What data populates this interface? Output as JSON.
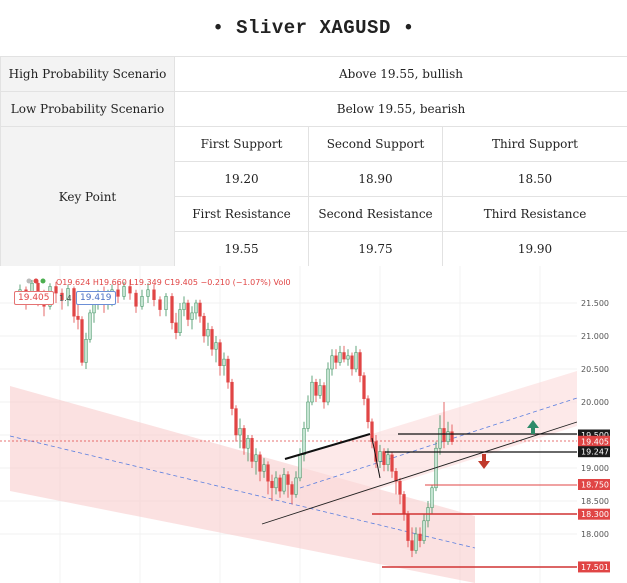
{
  "title": "•  Sliver XAGUSD  •",
  "scenarios": {
    "high_label": "High Probability Scenario",
    "high_value": "Above 19.55, bullish",
    "low_label": "Low Probability Scenario",
    "low_value": "Below 19.55, bearish"
  },
  "key_point": {
    "label": "Key Point",
    "support_headers": [
      "First Support",
      "Second Support",
      "Third Support"
    ],
    "support_values": [
      "19.20",
      "18.90",
      "18.50"
    ],
    "resistance_headers": [
      "First Resistance",
      "Second Resistance",
      "Third Resistance"
    ],
    "resistance_values": [
      "19.55",
      "19.75",
      "19.90"
    ]
  },
  "chart": {
    "ohlc_text": "O19.624 H19.660 L19.349 C19.405 −0.210 (−1.07%) Vol0",
    "price_box_sell": "19.405",
    "spread": "1.4",
    "price_box_buy": "19.419",
    "axis_ticks": [
      "21.500",
      "21.000",
      "20.500",
      "20.000",
      "19.500",
      "19.000",
      "18.500",
      "18.000"
    ],
    "price_labels": [
      {
        "text": "19.500",
        "style": "dark"
      },
      {
        "text": "19.405",
        "style": "red"
      },
      {
        "text": "19.247",
        "style": "dark"
      },
      {
        "text": "18.750",
        "style": "red"
      },
      {
        "text": "18.300",
        "style": "red"
      },
      {
        "text": "17.501",
        "style": "red"
      }
    ],
    "colors": {
      "up": "#b8dcc8",
      "up_border": "#4caf50",
      "down": "#e04545",
      "channel": "#f7c9c9",
      "arrow_up": "#2e8b6a",
      "arrow_down": "#c0392b"
    }
  }
}
